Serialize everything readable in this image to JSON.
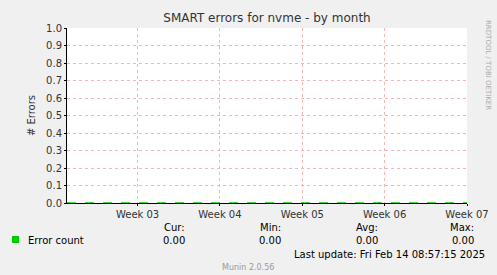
{
  "chart_data": {
    "type": "line",
    "title": "SMART errors for nvme - by month",
    "y_label": "# Errors",
    "categories": [
      null,
      null,
      null,
      null,
      null,
      null,
      "Week 03",
      null,
      null,
      null,
      null,
      null,
      null,
      "Week 04",
      null,
      null,
      null,
      null,
      null,
      null,
      "Week 05",
      null,
      null,
      null,
      null,
      null,
      null,
      "Week 06",
      null,
      null,
      null,
      null,
      null,
      null,
      "Week 07"
    ],
    "series": [
      {
        "name": "Error count",
        "color": "#00cc00",
        "line_style": "dashed",
        "values": [
          0,
          0,
          0,
          0,
          0,
          0,
          0,
          0,
          0,
          0,
          0,
          0,
          0,
          0,
          0,
          0,
          0,
          0,
          0,
          0,
          0,
          0,
          0,
          0,
          0,
          0,
          0,
          0,
          0,
          0,
          0,
          0,
          0,
          0,
          0
        ]
      }
    ],
    "ylim": [
      0,
      1
    ],
    "yticks": [
      {
        "value": 0,
        "label": "0.0"
      },
      0.1,
      0.2,
      0.3,
      0.4,
      0.5,
      0.6,
      0.7,
      0.8,
      0.9,
      {
        "value": 1,
        "label": "1.0"
      }
    ],
    "grid": true,
    "summary": {
      "headers": [
        "Cur:",
        "Min:",
        "Avg:",
        "Max:"
      ],
      "values": [
        0,
        0,
        0,
        0
      ],
      "value_labels": [
        "0.00",
        "0.00",
        "0.00",
        "0.00"
      ]
    },
    "footer": "Last update: Fri Feb 14 08:57:15 2025",
    "credit": "Munin 2.0.56",
    "watermark": "RRDTOOL / TOBI OETIKER"
  }
}
